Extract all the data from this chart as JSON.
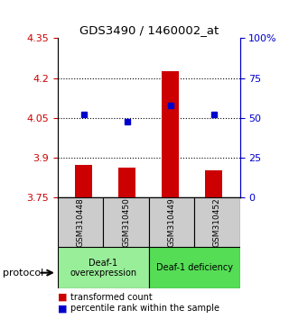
{
  "title": "GDS3490 / 1460002_at",
  "samples": [
    "GSM310448",
    "GSM310450",
    "GSM310449",
    "GSM310452"
  ],
  "transformed_counts": [
    3.875,
    3.865,
    4.225,
    3.855
  ],
  "percentile_ranks": [
    52,
    48,
    58,
    52
  ],
  "ylim": [
    3.75,
    4.35
  ],
  "yticks_left": [
    3.75,
    3.9,
    4.05,
    4.2,
    4.35
  ],
  "yticks_right_vals": [
    0,
    25,
    50,
    75,
    100
  ],
  "dotted_lines": [
    4.2,
    4.05,
    3.9
  ],
  "bar_color": "#cc0000",
  "dot_color": "#0000cc",
  "bar_bottom": 3.75,
  "groups": [
    {
      "label": "Deaf-1\noverexpression",
      "samples": [
        0,
        1
      ],
      "color": "#99ee99"
    },
    {
      "label": "Deaf-1 deficiency",
      "samples": [
        2,
        3
      ],
      "color": "#55dd55"
    }
  ],
  "protocol_label": "protocol",
  "legend_bar_label": "transformed count",
  "legend_dot_label": "percentile rank within the sample",
  "tick_color_left": "#cc0000",
  "tick_color_right": "#0000cc",
  "bar_width": 0.4,
  "sample_box_color": "#cccccc",
  "percentile_scale_max": 4.35,
  "percentile_scale_min": 3.75
}
